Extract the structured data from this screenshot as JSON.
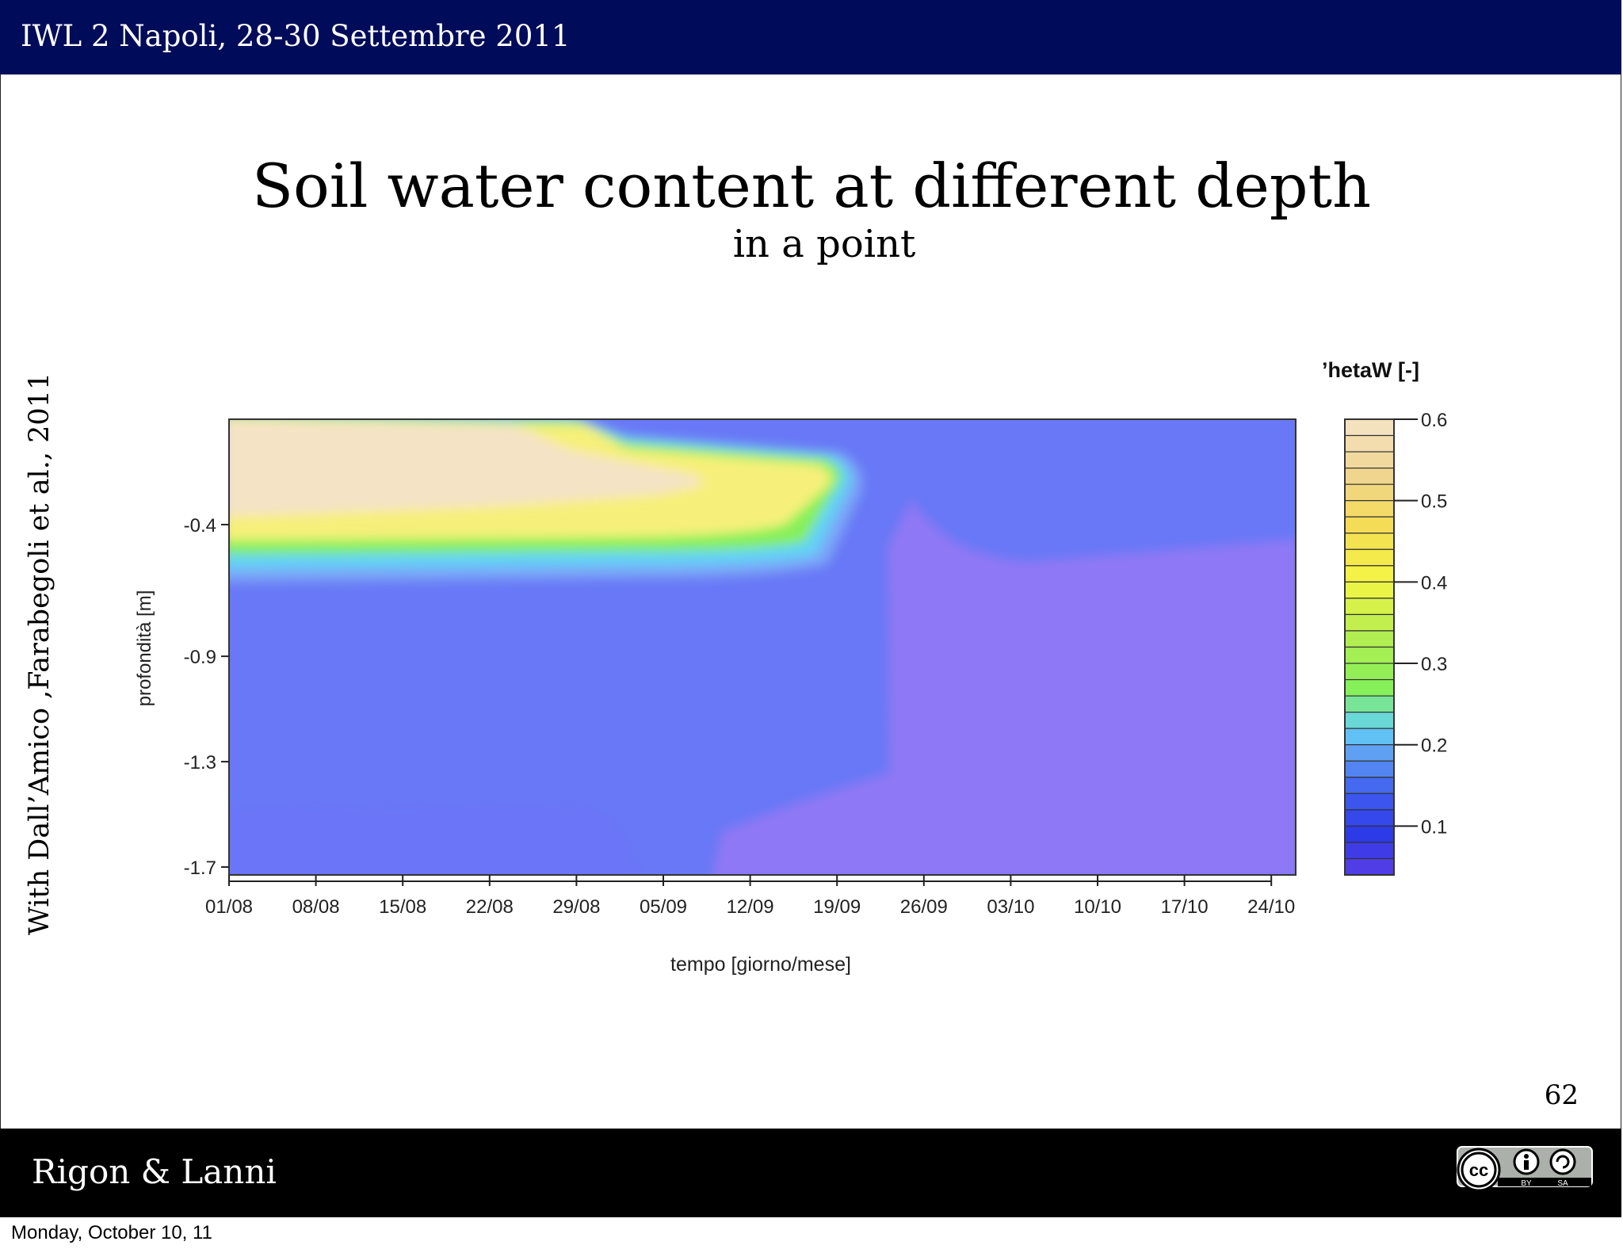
{
  "header": {
    "text": "IWL 2 Napoli, 28-30 Settembre 2011"
  },
  "slide": {
    "title": "Soil water content at different depth",
    "subtitle": "in a point",
    "side_credit": "With Dall’Amico ,Farabegoli et al., 2011",
    "page_number": "62"
  },
  "footer": {
    "authors": "Rigon & Lanni",
    "license_icon": "cc-by-sa-badge",
    "license_by": "BY",
    "license_sa": "SA"
  },
  "date_stamp": "Monday, October 10, 11",
  "chart_data": {
    "type": "heatmap",
    "legend_title": "’hetaW [-]",
    "xlabel": "tempo [giorno/mese]",
    "ylabel": "profondità [m]",
    "x_ticks": [
      "01/08",
      "08/08",
      "15/08",
      "22/08",
      "29/08",
      "05/09",
      "12/09",
      "19/09",
      "26/09",
      "03/10",
      "10/10",
      "17/10",
      "24/10"
    ],
    "y_ticks": [
      -0.4,
      -0.9,
      -1.3,
      -1.7
    ],
    "ylim": [
      -1.73,
      0.0
    ],
    "colorbar_ticks": [
      0.6,
      0.5,
      0.4,
      0.3,
      0.2,
      0.1
    ],
    "colorbar_range": [
      0.04,
      0.6
    ],
    "colors": {
      "wettest": "#f5e3c6",
      "wet": "#f6f07a",
      "medium": "#86f05a",
      "moist": "#62d2f6",
      "dry": "#6878f6",
      "driest": "#5a3ee6",
      "deep_zone": "#8f78f5"
    }
  }
}
